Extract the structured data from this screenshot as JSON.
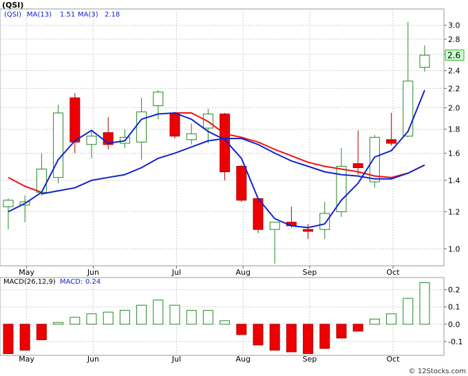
{
  "chart_data": [
    {
      "type": "candlestick",
      "title": "(QSI)",
      "y_scale": "log",
      "ylim": [
        0.92,
        3.25
      ],
      "y_ticks": [
        1.0,
        1.2,
        1.4,
        1.6,
        1.8,
        2.0,
        2.2,
        2.4,
        2.6,
        2.8,
        3.0
      ],
      "y_tick_labels": [
        "1.0",
        "1.2",
        "1.4",
        "1.6",
        "1.8",
        "2.0",
        "2.2",
        "2.4",
        "2.6",
        "2.8",
        "3.0"
      ],
      "x_labels": [
        "May",
        "Jun",
        "Jul",
        "Aug",
        "Sep",
        "Oct"
      ],
      "x_label_index": [
        1.1,
        5.1,
        10.1,
        14.1,
        18.1,
        23.1
      ],
      "legend": {
        "label": "(QSI)",
        "ma13_label": "MA(13)",
        "ma13_value": "1.51",
        "ma3_label": "MA(3)",
        "ma3_value": "2.18"
      },
      "last_price_label": "2.6",
      "grid": true,
      "candles": [
        {
          "o": 1.23,
          "h": 1.28,
          "l": 1.1,
          "c": 1.27
        },
        {
          "o": 1.24,
          "h": 1.3,
          "l": 1.14,
          "c": 1.26
        },
        {
          "o": 1.32,
          "h": 1.6,
          "l": 1.3,
          "c": 1.48
        },
        {
          "o": 1.42,
          "h": 2.03,
          "l": 1.38,
          "c": 1.95
        },
        {
          "o": 2.1,
          "h": 2.15,
          "l": 1.6,
          "c": 1.69
        },
        {
          "o": 1.67,
          "h": 1.78,
          "l": 1.56,
          "c": 1.74
        },
        {
          "o": 1.77,
          "h": 1.91,
          "l": 1.63,
          "c": 1.67
        },
        {
          "o": 1.68,
          "h": 1.8,
          "l": 1.64,
          "c": 1.73
        },
        {
          "o": 1.69,
          "h": 2.1,
          "l": 1.55,
          "c": 1.96
        },
        {
          "o": 2.02,
          "h": 2.18,
          "l": 1.89,
          "c": 2.16
        },
        {
          "o": 1.95,
          "h": 1.96,
          "l": 1.72,
          "c": 1.74
        },
        {
          "o": 1.71,
          "h": 1.85,
          "l": 1.67,
          "c": 1.76
        },
        {
          "o": 1.81,
          "h": 1.99,
          "l": 1.68,
          "c": 1.94
        },
        {
          "o": 1.94,
          "h": 1.95,
          "l": 1.4,
          "c": 1.46
        },
        {
          "o": 1.5,
          "h": 1.51,
          "l": 1.26,
          "c": 1.27
        },
        {
          "o": 1.28,
          "h": 1.28,
          "l": 1.08,
          "c": 1.1
        },
        {
          "o": 1.1,
          "h": 1.14,
          "l": 0.93,
          "c": 1.14
        },
        {
          "o": 1.14,
          "h": 1.23,
          "l": 1.11,
          "c": 1.12
        },
        {
          "o": 1.1,
          "h": 1.13,
          "l": 1.05,
          "c": 1.09
        },
        {
          "o": 1.1,
          "h": 1.26,
          "l": 1.05,
          "c": 1.19
        },
        {
          "o": 1.2,
          "h": 1.64,
          "l": 1.17,
          "c": 1.5
        },
        {
          "o": 1.52,
          "h": 1.79,
          "l": 1.44,
          "c": 1.49
        },
        {
          "o": 1.39,
          "h": 1.75,
          "l": 1.35,
          "c": 1.73
        },
        {
          "o": 1.71,
          "h": 1.95,
          "l": 1.66,
          "c": 1.68
        },
        {
          "o": 1.74,
          "h": 3.05,
          "l": 1.73,
          "c": 2.28
        },
        {
          "o": 2.44,
          "h": 2.72,
          "l": 2.39,
          "c": 2.59
        }
      ],
      "series": [
        {
          "label": "MA(13)",
          "color": "#ee1111",
          "values": [
            1.42,
            1.36,
            1.32,
            null,
            null,
            null,
            null,
            null,
            null,
            null,
            1.95,
            1.95,
            1.87,
            1.76,
            1.73,
            1.69,
            1.63,
            1.58,
            1.53,
            1.5,
            1.48,
            1.46,
            1.43,
            1.42,
            1.45,
            1.51
          ]
        },
        {
          "label": "MA(3)",
          "color": "#1122cc",
          "values": [
            1.2,
            1.25,
            1.32,
            1.55,
            1.7,
            1.79,
            1.68,
            1.7,
            1.89,
            1.94,
            1.95,
            1.89,
            1.78,
            1.71,
            1.56,
            1.28,
            1.16,
            1.12,
            1.11,
            1.13,
            1.27,
            1.38,
            1.57,
            1.62,
            1.78,
            2.18
          ]
        },
        {
          "label": "MA(13)",
          "color": "#1122cc",
          "values": [
            null,
            null,
            1.31,
            1.33,
            1.35,
            1.4,
            1.42,
            1.44,
            1.49,
            1.56,
            1.6,
            1.65,
            1.7,
            1.72,
            1.72,
            1.67,
            1.6,
            1.54,
            1.5,
            1.46,
            1.44,
            1.43,
            1.41,
            1.41,
            1.45,
            1.51
          ]
        }
      ]
    },
    {
      "type": "bar",
      "legend": {
        "label": "MACD(26,12,9)",
        "macd_label": "MACD:",
        "macd_value": "0.24"
      },
      "ylim": [
        -0.18,
        0.27
      ],
      "y_ticks": [
        -0.1,
        0.0,
        0.1,
        0.2
      ],
      "y_tick_labels": [
        "-0.1",
        "0.0",
        "0.1",
        "0.2"
      ],
      "x_labels": [
        "May",
        "Jun",
        "Jul",
        "Aug",
        "Sep",
        "Oct"
      ],
      "x_label_index": [
        1.1,
        5.1,
        10.1,
        14.1,
        18.1,
        23.1
      ],
      "values": [
        -0.17,
        -0.15,
        -0.09,
        0.01,
        0.04,
        0.06,
        0.07,
        0.08,
        0.11,
        0.14,
        0.11,
        0.08,
        0.08,
        0.02,
        -0.06,
        -0.12,
        -0.15,
        -0.16,
        -0.17,
        -0.14,
        -0.08,
        -0.04,
        0.03,
        0.06,
        0.15,
        0.24
      ]
    }
  ],
  "watermark": "© 12Stocks.com"
}
